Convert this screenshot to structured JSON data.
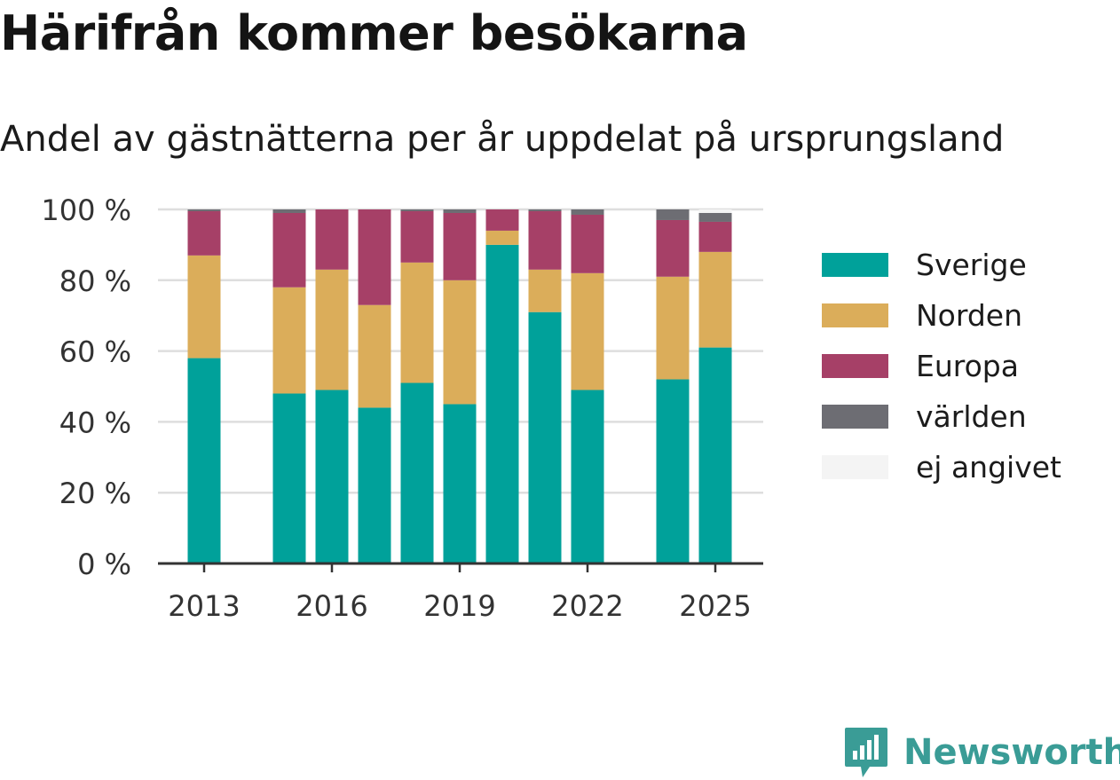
{
  "title": "Härifrån kommer besökarna",
  "subtitle": "Andel av gästnätterna per år uppdelat på ursprungsland",
  "brand": {
    "name": "Newsworthy",
    "icon": "newsworthy-logo-icon",
    "color": "#3a9c96"
  },
  "chart_data": {
    "type": "bar",
    "stacked": true,
    "categories": [
      "2013",
      "2014",
      "2015",
      "2016",
      "2017",
      "2018",
      "2019",
      "2020",
      "2021",
      "2022",
      "2023",
      "2024",
      "2025"
    ],
    "x_tick_labels": [
      "2013",
      "2016",
      "2019",
      "2022",
      "2025"
    ],
    "y_tick_labels": [
      "0 %",
      "20 %",
      "40 %",
      "60 %",
      "80 %",
      "100 %"
    ],
    "ylim": [
      0,
      100
    ],
    "grid": true,
    "legend_position": "right",
    "series": [
      {
        "name": "Sverige",
        "color": "#00a19a",
        "values": [
          58,
          null,
          48,
          49,
          44,
          51,
          45,
          90,
          71,
          49,
          null,
          52,
          61
        ]
      },
      {
        "name": "Norden",
        "color": "#dbad5a",
        "values": [
          29,
          null,
          30,
          34,
          29,
          34,
          35,
          4,
          12,
          33,
          null,
          29,
          27
        ]
      },
      {
        "name": "Europa",
        "color": "#a64067",
        "values": [
          12.5,
          null,
          21,
          17,
          27,
          14.5,
          19,
          6,
          16.5,
          16.5,
          null,
          16,
          8.5
        ]
      },
      {
        "name": "världen",
        "color": "#6d6d73",
        "values": [
          0.5,
          null,
          1,
          0,
          0,
          0.5,
          1,
          0,
          0.5,
          1.5,
          null,
          3,
          2.5
        ]
      },
      {
        "name": "ej angivet",
        "color": "#f4f4f4",
        "values": [
          0,
          null,
          0,
          0,
          0,
          0,
          0,
          0,
          0,
          0,
          null,
          0,
          1
        ]
      }
    ]
  }
}
